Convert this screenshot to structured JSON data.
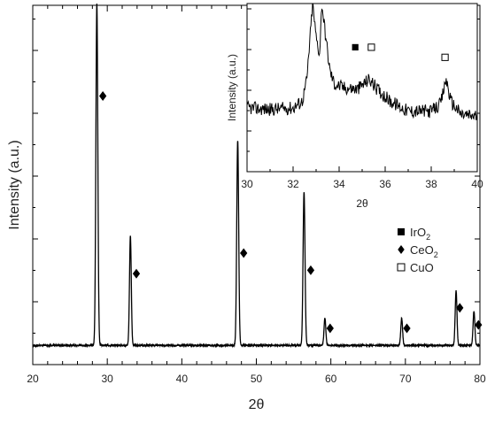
{
  "chart_data": [
    {
      "type": "line",
      "xlabel": "2θ",
      "ylabel": "Intensity (a.u.)",
      "xlim": [
        20,
        80
      ],
      "xticks": [
        20,
        30,
        40,
        50,
        60,
        70,
        80
      ],
      "yticks_labeled": false,
      "series": [
        {
          "baseline": 0.02,
          "peaks": [
            {
              "x": 28.6,
              "height": 1.0,
              "width": 0.13
            },
            {
              "x": 33.1,
              "height": 0.32,
              "width": 0.12
            },
            {
              "x": 47.5,
              "height": 0.6,
              "width": 0.13
            },
            {
              "x": 56.4,
              "height": 0.45,
              "width": 0.13
            },
            {
              "x": 59.2,
              "height": 0.08,
              "width": 0.12
            },
            {
              "x": 69.5,
              "height": 0.08,
              "width": 0.12
            },
            {
              "x": 76.8,
              "height": 0.16,
              "width": 0.12
            },
            {
              "x": 79.2,
              "height": 0.1,
              "width": 0.12
            }
          ]
        }
      ],
      "markers": [
        {
          "phase": "CeO2",
          "symbol": "diamond-filled",
          "x": 29.4,
          "y": 0.75
        },
        {
          "phase": "CeO2",
          "symbol": "diamond-filled",
          "x": 33.9,
          "y": 0.23
        },
        {
          "phase": "CeO2",
          "symbol": "diamond-filled",
          "x": 48.3,
          "y": 0.29
        },
        {
          "phase": "CeO2",
          "symbol": "diamond-filled",
          "x": 57.3,
          "y": 0.24
        },
        {
          "phase": "CeO2",
          "symbol": "diamond-filled",
          "x": 59.9,
          "y": 0.07
        },
        {
          "phase": "CeO2",
          "symbol": "diamond-filled",
          "x": 70.2,
          "y": 0.07
        },
        {
          "phase": "CeO2",
          "symbol": "diamond-filled",
          "x": 77.3,
          "y": 0.13
        },
        {
          "phase": "CeO2",
          "symbol": "diamond-filled",
          "x": 79.8,
          "y": 0.08
        }
      ],
      "legend": {
        "placement": "right",
        "entries": [
          {
            "symbol": "square-filled",
            "label": "IrO",
            "sub": "2"
          },
          {
            "symbol": "diamond-filled",
            "label": "CeO",
            "sub": "2"
          },
          {
            "symbol": "square-open",
            "label": "CuO",
            "sub": ""
          }
        ]
      }
    },
    {
      "type": "line",
      "inset": true,
      "xlabel": "2θ",
      "ylabel": "Intensity (a.u.)",
      "xlim": [
        30,
        40
      ],
      "xticks": [
        30,
        32,
        34,
        36,
        38,
        40
      ],
      "ylim": [
        0,
        1
      ],
      "series": [
        {
          "noise": 0.04,
          "points": [
            [
              30.0,
              0.38
            ],
            [
              31.0,
              0.37
            ],
            [
              32.0,
              0.38
            ],
            [
              32.4,
              0.42
            ],
            [
              32.6,
              0.55
            ],
            [
              32.75,
              0.82
            ],
            [
              32.85,
              1.0
            ],
            [
              33.0,
              0.8
            ],
            [
              33.15,
              0.7
            ],
            [
              33.25,
              1.0
            ],
            [
              33.4,
              0.82
            ],
            [
              33.6,
              0.6
            ],
            [
              33.8,
              0.52
            ],
            [
              34.2,
              0.5
            ],
            [
              34.8,
              0.49
            ],
            [
              35.3,
              0.55
            ],
            [
              35.6,
              0.5
            ],
            [
              36.2,
              0.42
            ],
            [
              37.0,
              0.36
            ],
            [
              38.0,
              0.36
            ],
            [
              38.4,
              0.4
            ],
            [
              38.65,
              0.55
            ],
            [
              38.85,
              0.42
            ],
            [
              39.3,
              0.34
            ],
            [
              40.0,
              0.33
            ]
          ]
        }
      ],
      "markers": [
        {
          "phase": "IrO2",
          "symbol": "square-filled",
          "x": 34.7,
          "y": 0.74
        },
        {
          "phase": "CuO",
          "symbol": "square-open",
          "x": 35.4,
          "y": 0.74
        },
        {
          "phase": "CuO",
          "symbol": "square-open",
          "x": 38.6,
          "y": 0.68
        }
      ]
    }
  ]
}
